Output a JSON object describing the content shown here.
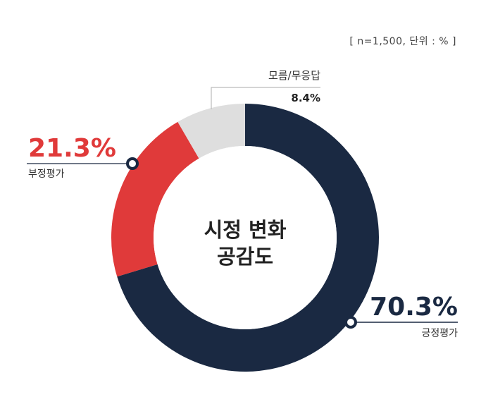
{
  "note": "[ n=1,500, 단위 : % ]",
  "colors": {
    "positive": "#1a2942",
    "negative": "#e03a3a",
    "unknown": "#dedede",
    "text": "#222222"
  },
  "chart_data": {
    "type": "pie",
    "title": "시정 변화\n공감도",
    "title_lines": [
      "시정 변화",
      "공감도"
    ],
    "unit": "%",
    "sample": "n=1,500",
    "categories": [
      "긍정평가",
      "부정평가",
      "모름/무응답"
    ],
    "values": [
      70.3,
      21.3,
      8.4
    ],
    "labels": [
      "70.3%",
      "21.3%",
      "8.4%"
    ]
  }
}
